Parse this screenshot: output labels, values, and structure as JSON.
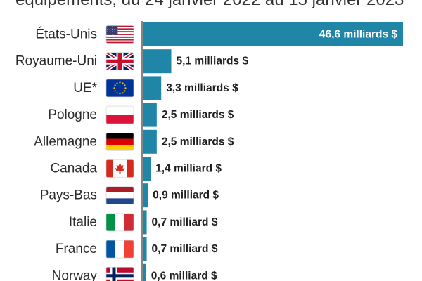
{
  "title": "équipements, du 24 janvier 2022 au 15 janvier 2023",
  "colors": {
    "bar": "#1f86a8",
    "axis": "#333333"
  },
  "chart_data": {
    "type": "bar",
    "orientation": "horizontal",
    "title": "équipements, du 24 janvier 2022 au 15 janvier 2023",
    "xlabel": "",
    "ylabel": "",
    "xlim": [
      0,
      46.6
    ],
    "categories": [
      "États-Unis",
      "Royaume-Uni",
      "UE*",
      "Pologne",
      "Allemagne",
      "Canada",
      "Pays-Bas",
      "Italie",
      "France",
      "Norway"
    ],
    "values": [
      46.6,
      5.1,
      3.3,
      2.5,
      2.5,
      1.4,
      0.9,
      0.7,
      0.7,
      0.6
    ],
    "value_labels": [
      "46,6 milliards $",
      "5,1 milliards $",
      "3,3 milliards $",
      "2,5 milliards $",
      "2,5 milliards $",
      "1,4 milliard $",
      "0,9 milliard $",
      "0,7 milliard $",
      "0,7 milliard $",
      "0,6 milliard $"
    ],
    "flags": [
      "us-flag-icon",
      "uk-flag-icon",
      "eu-flag-icon",
      "poland-flag-icon",
      "germany-flag-icon",
      "canada-flag-icon",
      "netherlands-flag-icon",
      "italy-flag-icon",
      "france-flag-icon",
      "norway-flag-icon"
    ],
    "grid": false
  }
}
